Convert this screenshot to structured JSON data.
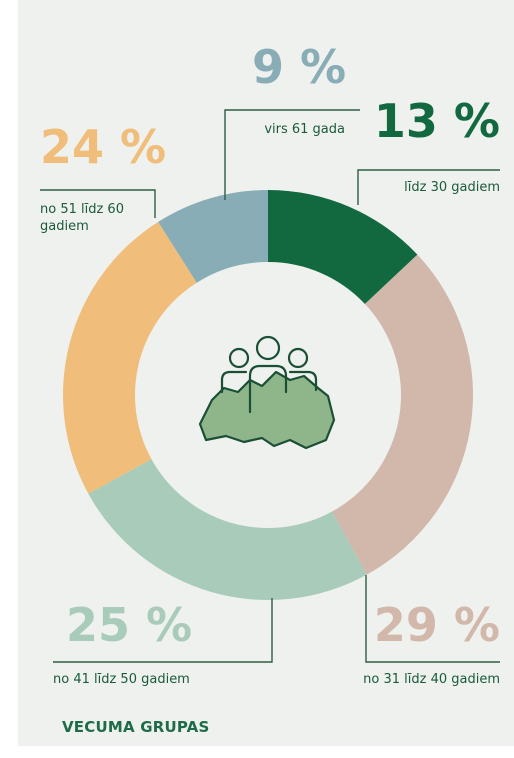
{
  "chart_data": {
    "type": "donut",
    "title": "VECUMA GRUPAS",
    "categories": [
      "līdz 30 gadiem",
      "no 31 līdz 40 gadiem",
      "no 41 līdz 50 gadiem",
      "no 51 līdz 60 gadiem",
      "virs 61 gada"
    ],
    "values": [
      13,
      29,
      25,
      24,
      9
    ],
    "value_labels": [
      "13 %",
      "29 %",
      "25 %",
      "24 %",
      "9 %"
    ],
    "colors": [
      "#12693f",
      "#d1b8ab",
      "#a9cbba",
      "#f0be7a",
      "#89adb6"
    ]
  }
}
